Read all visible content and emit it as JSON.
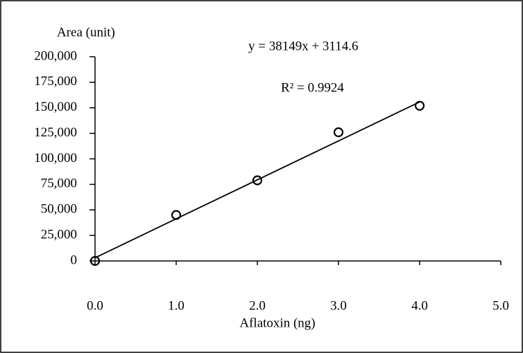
{
  "chart_data": {
    "type": "scatter",
    "y_label": "Area (unit)",
    "x_label": "Aflatoxin (ng)",
    "annotations": [
      "y = 38149x + 3114.6",
      "R² = 0.9924"
    ],
    "x": [
      0,
      1,
      2,
      3,
      4
    ],
    "values": [
      0,
      45000,
      79000,
      126000,
      152000
    ],
    "color": "#000000",
    "trendline": {
      "x": [
        0,
        4
      ],
      "values": [
        3114.6,
        155710.6
      ]
    },
    "xlim": [
      0,
      5
    ],
    "ylim": [
      0,
      200000
    ],
    "xticks": [
      {
        "value": 0,
        "label": "0.0"
      },
      {
        "value": 1,
        "label": "1.0"
      },
      {
        "value": 2,
        "label": "2.0"
      },
      {
        "value": 3,
        "label": "3.0"
      },
      {
        "value": 4,
        "label": "4.0"
      },
      {
        "value": 5,
        "label": "5.0"
      }
    ],
    "yticks": [
      0,
      {
        "value": 25000,
        "label": "25,000"
      },
      {
        "value": 50000,
        "label": "50,000"
      },
      {
        "value": 75000,
        "label": "75,000"
      },
      {
        "value": 100000,
        "label": "100,000"
      },
      {
        "value": 125000,
        "label": "125,000"
      },
      {
        "value": 150000,
        "label": "150,000"
      },
      {
        "value": 175000,
        "label": "175,000"
      },
      {
        "value": 200000,
        "label": "200,000"
      }
    ]
  }
}
